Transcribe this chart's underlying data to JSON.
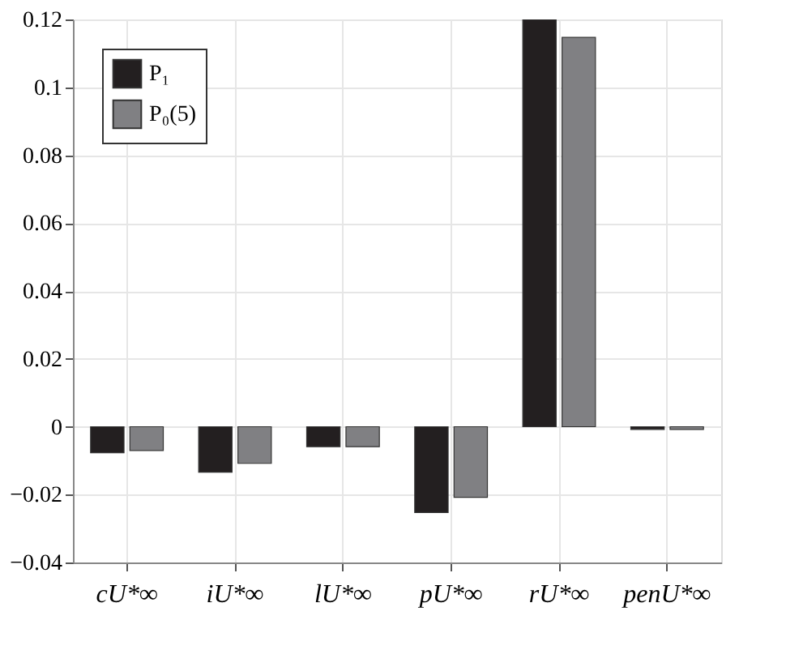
{
  "chart_data": {
    "type": "bar",
    "categories": [
      "cU*∞",
      "iU*∞",
      "lU*∞",
      "pU*∞",
      "rU*∞",
      "penU*∞"
    ],
    "series": [
      {
        "name": "P₁",
        "color": "#231f20",
        "values": [
          -0.0077,
          -0.0134,
          -0.0059,
          -0.0253,
          0.12,
          -0.0008
        ]
      },
      {
        "name": "P₀(5)",
        "color": "#808083",
        "values": [
          -0.007,
          -0.0108,
          -0.0059,
          -0.0208,
          0.1147,
          -0.0008
        ]
      }
    ],
    "ylim": [
      -0.04,
      0.12
    ],
    "yticks": [
      -0.04,
      -0.02,
      0,
      0.02,
      0.04,
      0.06,
      0.08,
      0.1,
      0.12
    ],
    "grid": true,
    "legend": "top left"
  }
}
